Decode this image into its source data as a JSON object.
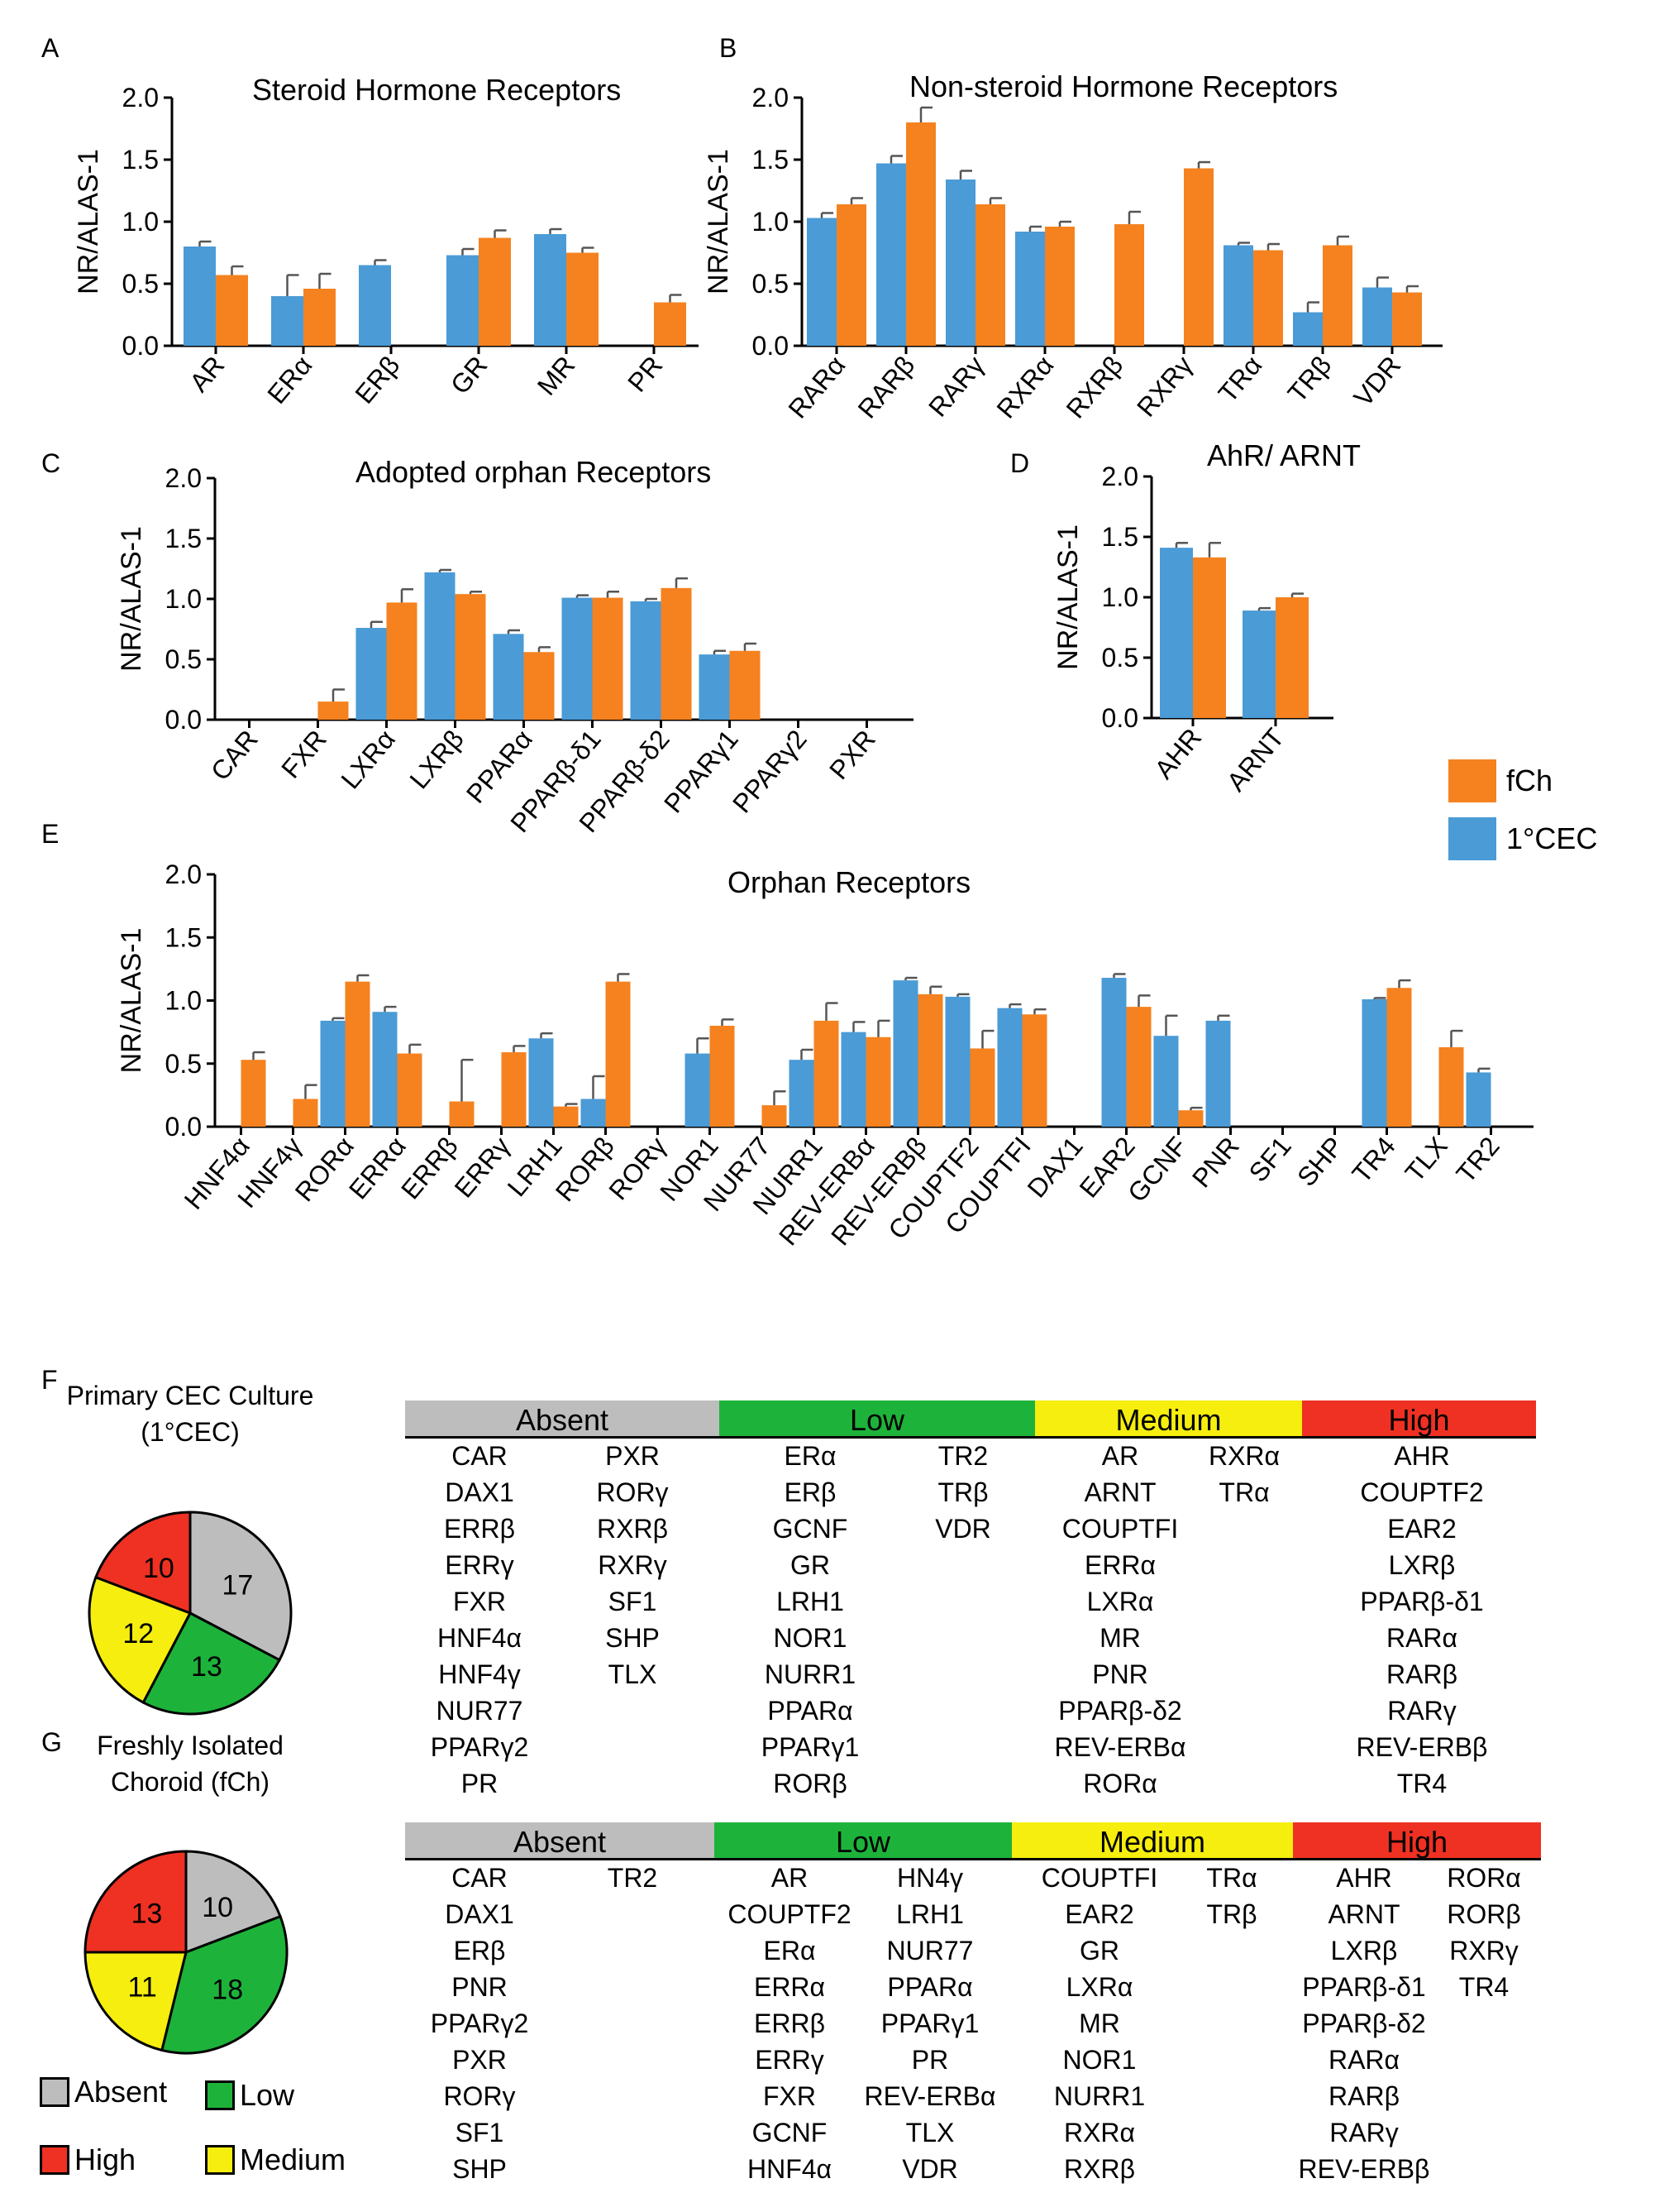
{
  "panel_letters": {
    "a": "A",
    "b": "B",
    "c": "C",
    "d": "D",
    "e": "E",
    "f": "F",
    "g": "G"
  },
  "colors": {
    "fCh": "#F5821F",
    "CEC": "#4A9BD6",
    "absent": "#BDBDBD",
    "low": "#1DB33A",
    "medium": "#F5EE0E",
    "high": "#EE3123"
  },
  "legend": {
    "fCh": "fCh",
    "CEC": "1°CEC"
  },
  "chart_data": [
    {
      "panel": "A",
      "type": "bar",
      "title": "Steroid Hormone Receptors",
      "ylabel": "NR/ALAS-1",
      "ylim": [
        0,
        2.0
      ],
      "yticks": [
        "0.0",
        "0.5",
        "1.0",
        "1.5",
        "2.0"
      ],
      "categories": [
        "AR",
        "ERα",
        "ERβ",
        "GR",
        "MR",
        "PR"
      ],
      "series": [
        {
          "name": "1°CEC",
          "values": [
            0.8,
            0.4,
            0.65,
            0.73,
            0.9,
            null
          ],
          "errors": [
            0.04,
            0.17,
            0.04,
            0.05,
            0.04,
            null
          ]
        },
        {
          "name": "fCh",
          "values": [
            0.57,
            0.46,
            null,
            0.87,
            0.75,
            0.35
          ],
          "errors": [
            0.07,
            0.12,
            null,
            0.06,
            0.04,
            0.06
          ]
        }
      ]
    },
    {
      "panel": "B",
      "type": "bar",
      "title": "Non-steroid Hormone Receptors",
      "ylabel": "NR/ALAS-1",
      "ylim": [
        0,
        2.0
      ],
      "yticks": [
        "0.0",
        "0.5",
        "1.0",
        "1.5",
        "2.0"
      ],
      "categories": [
        "RARα",
        "RARβ",
        "RARγ",
        "RXRα",
        "RXRβ",
        "RXRγ",
        "TRα",
        "TRβ",
        "VDR"
      ],
      "series": [
        {
          "name": "1°CEC",
          "values": [
            1.03,
            1.47,
            1.34,
            0.92,
            null,
            null,
            0.81,
            0.27,
            0.47
          ],
          "errors": [
            0.04,
            0.06,
            0.07,
            0.04,
            null,
            null,
            0.02,
            0.08,
            0.08
          ]
        },
        {
          "name": "fCh",
          "values": [
            1.14,
            1.8,
            1.14,
            0.96,
            0.98,
            1.43,
            0.77,
            0.81,
            0.43
          ],
          "errors": [
            0.05,
            0.12,
            0.05,
            0.04,
            0.1,
            0.05,
            0.05,
            0.07,
            0.05
          ]
        }
      ]
    },
    {
      "panel": "C",
      "type": "bar",
      "title": "Adopted orphan Receptors",
      "ylabel": "NR/ALAS-1",
      "ylim": [
        0,
        2.0
      ],
      "yticks": [
        "0.0",
        "0.5",
        "1.0",
        "1.5",
        "2.0"
      ],
      "categories": [
        "CAR",
        "FXR",
        "LXRα",
        "LXRβ",
        "PPARα",
        "PPARβ-δ1",
        "PPARβ-δ2",
        "PPARγ1",
        "PPARγ2",
        "PXR"
      ],
      "series": [
        {
          "name": "1°CEC",
          "values": [
            null,
            null,
            0.76,
            1.22,
            0.71,
            1.01,
            0.98,
            0.54,
            null,
            null
          ],
          "errors": [
            null,
            null,
            0.05,
            0.02,
            0.03,
            0.02,
            0.02,
            0.03,
            null,
            null
          ]
        },
        {
          "name": "fCh",
          "values": [
            null,
            0.15,
            0.97,
            1.04,
            0.56,
            1.01,
            1.09,
            0.57,
            null,
            null
          ],
          "errors": [
            null,
            0.1,
            0.11,
            0.02,
            0.04,
            0.05,
            0.08,
            0.06,
            null,
            null
          ]
        }
      ]
    },
    {
      "panel": "D",
      "type": "bar",
      "title": "AhR/ ARNT",
      "ylabel": "NR/ALAS-1",
      "ylim": [
        0,
        2.0
      ],
      "yticks": [
        "0.0",
        "0.5",
        "1.0",
        "1.5",
        "2.0"
      ],
      "categories": [
        "AHR",
        "ARNT"
      ],
      "series": [
        {
          "name": "1°CEC",
          "values": [
            1.41,
            0.89
          ],
          "errors": [
            0.04,
            0.02
          ]
        },
        {
          "name": "fCh",
          "values": [
            1.33,
            1.0
          ],
          "errors": [
            0.12,
            0.03
          ]
        }
      ]
    },
    {
      "panel": "E",
      "type": "bar",
      "title": "Orphan Receptors",
      "ylabel": "NR/ALAS-1",
      "ylim": [
        0,
        2.0
      ],
      "yticks": [
        "0.0",
        "0.5",
        "1.0",
        "1.5",
        "2.0"
      ],
      "categories": [
        "HNF4α",
        "HNF4γ",
        "RORα",
        "ERRα",
        "ERRβ",
        "ERRγ",
        "LRH1",
        "RORβ",
        "RORγ",
        "NOR1",
        "NUR77",
        "NURR1",
        "REV-ERBα",
        "REV-ERBβ",
        "COUPTF2",
        "COUPTFI",
        "DAX1",
        "EAR2",
        "GCNF",
        "PNR",
        "SF1",
        "SHP",
        "TR4",
        "TLX",
        "TR2"
      ],
      "series": [
        {
          "name": "1°CEC",
          "values": [
            null,
            null,
            0.84,
            0.91,
            null,
            null,
            0.7,
            0.22,
            null,
            0.58,
            null,
            0.53,
            0.75,
            1.16,
            1.03,
            0.94,
            null,
            1.18,
            0.72,
            0.84,
            null,
            null,
            1.01,
            null,
            0.43
          ],
          "errors": [
            null,
            null,
            0.02,
            0.04,
            null,
            null,
            0.04,
            0.18,
            null,
            0.12,
            null,
            0.08,
            0.08,
            0.02,
            0.02,
            0.03,
            null,
            0.03,
            0.16,
            0.04,
            null,
            null,
            0.01,
            null,
            0.03
          ]
        },
        {
          "name": "fCh",
          "values": [
            0.53,
            0.22,
            1.15,
            0.58,
            0.2,
            0.59,
            0.16,
            1.15,
            null,
            0.8,
            0.17,
            0.84,
            0.71,
            1.05,
            0.62,
            0.89,
            null,
            0.95,
            0.13,
            null,
            null,
            null,
            1.1,
            0.63,
            null
          ],
          "errors": [
            0.06,
            0.11,
            0.05,
            0.07,
            0.33,
            0.05,
            0.02,
            0.06,
            null,
            0.05,
            0.11,
            0.14,
            0.13,
            0.06,
            0.14,
            0.04,
            null,
            0.09,
            0.02,
            null,
            null,
            null,
            0.06,
            0.13,
            null
          ]
        }
      ]
    },
    {
      "panel": "F",
      "type": "pie",
      "title_line1": "Primary CEC Culture",
      "title_line2": "(1°CEC)",
      "labels": [
        "Absent",
        "Low",
        "Medium",
        "High"
      ],
      "values": [
        17,
        13,
        12,
        10
      ]
    },
    {
      "panel": "G",
      "type": "pie",
      "title_line1": "Freshly Isolated",
      "title_line2": "Choroid (fCh)",
      "labels": [
        "Absent",
        "Low",
        "Medium",
        "High"
      ],
      "values": [
        10,
        18,
        11,
        13
      ]
    }
  ],
  "tables": {
    "headers": {
      "absent": "Absent",
      "low": "Low",
      "medium": "Medium",
      "high": "High"
    },
    "f": {
      "absent": [
        [
          "CAR",
          "DAX1",
          "ERRβ",
          "ERRγ",
          "FXR",
          "HNF4α",
          "HNF4γ",
          "NUR77",
          "PPARγ2",
          "PR"
        ],
        [
          "PXR",
          "RORγ",
          "RXRβ",
          "RXRγ",
          "SF1",
          "SHP",
          "TLX"
        ]
      ],
      "low": [
        [
          "ERα",
          "ERβ",
          "GCNF",
          "GR",
          "LRH1",
          "NOR1",
          "NURR1",
          "PPARα",
          "PPARγ1",
          "RORβ"
        ],
        [
          "TR2",
          "TRβ",
          "VDR"
        ]
      ],
      "medium": [
        [
          "AR",
          "ARNT",
          "COUPTFI",
          "ERRα",
          "LXRα",
          "MR",
          "PNR",
          "PPARβ-δ2",
          "REV-ERBα",
          "RORα"
        ],
        [
          "RXRα",
          "TRα"
        ]
      ],
      "high": [
        [
          "AHR",
          "COUPTF2",
          "EAR2",
          "LXRβ",
          "PPARβ-δ1",
          "RARα",
          "RARβ",
          "RARγ",
          "REV-ERBβ",
          "TR4"
        ]
      ]
    },
    "g": {
      "absent": [
        [
          "CAR",
          "DAX1",
          "ERβ",
          "PNR",
          "PPARγ2",
          "PXR",
          "RORγ",
          "SF1",
          "SHP"
        ],
        [
          "TR2"
        ]
      ],
      "low": [
        [
          "AR",
          "COUPTF2",
          "ERα",
          "ERRα",
          "ERRβ",
          "ERRγ",
          "FXR",
          "GCNF",
          "HNF4α"
        ],
        [
          "HN4γ",
          "LRH1",
          "NUR77",
          "PPARα",
          "PPARγ1",
          "PR",
          "REV-ERBα",
          "TLX",
          "VDR"
        ]
      ],
      "medium": [
        [
          "COUPTFI",
          "EAR2",
          "GR",
          "LXRα",
          "MR",
          "NOR1",
          "NURR1",
          "RXRα",
          "RXRβ"
        ],
        [
          "TRα",
          "TRβ"
        ]
      ],
      "high": [
        [
          "AHR",
          "ARNT",
          "LXRβ",
          "PPARβ-δ1",
          "PPARβ-δ2",
          "RARα",
          "RARβ",
          "RARγ",
          "REV-ERBβ"
        ],
        [
          "RORα",
          "RORβ",
          "RXRγ",
          "TR4"
        ]
      ]
    }
  },
  "key": {
    "absent": "Absent",
    "low": "Low",
    "high": "High",
    "medium": "Medium"
  }
}
